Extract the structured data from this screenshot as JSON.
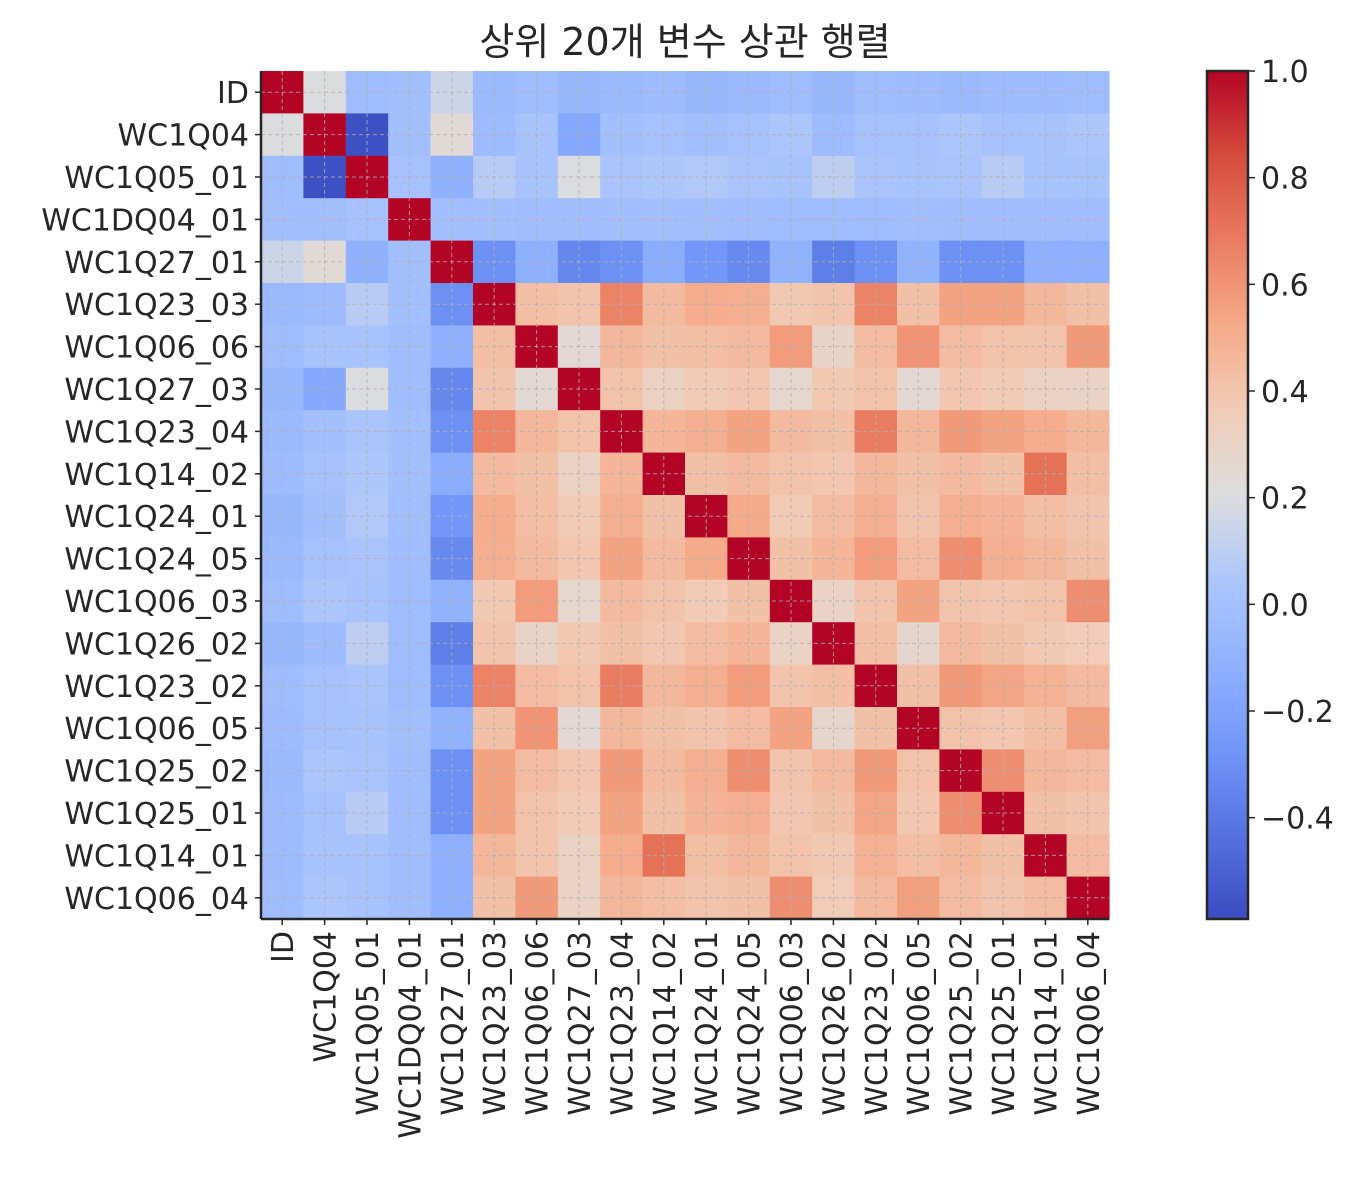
{
  "chart_data": {
    "type": "heatmap",
    "title": "상위 20개 변수 상관 행렬",
    "labels": [
      "ID",
      "WC1Q04",
      "WC1Q05_01",
      "WC1DQ04_01",
      "WC1Q27_01",
      "WC1Q23_03",
      "WC1Q06_06",
      "WC1Q27_03",
      "WC1Q23_04",
      "WC1Q14_02",
      "WC1Q24_01",
      "WC1Q24_05",
      "WC1Q06_03",
      "WC1Q26_02",
      "WC1Q23_02",
      "WC1Q06_05",
      "WC1Q25_02",
      "WC1Q25_01",
      "WC1Q14_01",
      "WC1Q06_04"
    ],
    "matrix": [
      [
        1.0,
        0.2,
        -0.03,
        -0.01,
        0.15,
        -0.05,
        -0.03,
        -0.07,
        -0.05,
        -0.04,
        -0.07,
        -0.05,
        -0.03,
        -0.07,
        -0.03,
        -0.04,
        -0.05,
        -0.04,
        -0.04,
        -0.03
      ],
      [
        0.2,
        1.0,
        -0.57,
        -0.01,
        0.24,
        -0.04,
        0.02,
        -0.17,
        0.0,
        0.01,
        -0.01,
        0.01,
        0.04,
        -0.04,
        0.01,
        0.01,
        0.04,
        0.01,
        0.02,
        0.04
      ],
      [
        -0.03,
        -0.57,
        1.0,
        0.01,
        -0.11,
        0.08,
        0.02,
        0.2,
        0.03,
        0.05,
        0.06,
        0.03,
        0.02,
        0.1,
        0.03,
        0.02,
        0.03,
        0.08,
        0.02,
        0.02
      ],
      [
        -0.01,
        -0.01,
        0.01,
        1.0,
        -0.01,
        0.0,
        -0.02,
        -0.02,
        0.0,
        0.0,
        -0.01,
        -0.02,
        -0.03,
        -0.03,
        -0.03,
        -0.01,
        -0.02,
        -0.02,
        -0.02,
        -0.02
      ],
      [
        0.15,
        0.24,
        -0.11,
        -0.01,
        1.0,
        -0.3,
        -0.12,
        -0.34,
        -0.3,
        -0.14,
        -0.27,
        -0.33,
        -0.1,
        -0.38,
        -0.3,
        -0.1,
        -0.3,
        -0.3,
        -0.12,
        -0.12
      ],
      [
        -0.05,
        -0.04,
        0.08,
        0.0,
        -0.3,
        1.0,
        0.43,
        0.4,
        0.66,
        0.45,
        0.51,
        0.5,
        0.38,
        0.4,
        0.66,
        0.42,
        0.55,
        0.55,
        0.46,
        0.42
      ],
      [
        -0.03,
        0.02,
        0.02,
        -0.02,
        -0.12,
        0.43,
        1.0,
        0.25,
        0.46,
        0.42,
        0.43,
        0.45,
        0.57,
        0.3,
        0.44,
        0.6,
        0.44,
        0.41,
        0.4,
        0.58
      ],
      [
        -0.07,
        -0.17,
        0.2,
        -0.02,
        -0.34,
        0.4,
        0.25,
        1.0,
        0.41,
        0.32,
        0.37,
        0.39,
        0.27,
        0.38,
        0.41,
        0.25,
        0.39,
        0.37,
        0.32,
        0.31
      ],
      [
        -0.05,
        0.0,
        0.03,
        0.0,
        -0.3,
        0.66,
        0.46,
        0.41,
        1.0,
        0.47,
        0.5,
        0.55,
        0.45,
        0.42,
        0.68,
        0.46,
        0.58,
        0.55,
        0.51,
        0.46
      ],
      [
        -0.04,
        0.01,
        0.05,
        0.0,
        -0.14,
        0.45,
        0.42,
        0.32,
        0.47,
        1.0,
        0.42,
        0.45,
        0.41,
        0.39,
        0.46,
        0.42,
        0.45,
        0.42,
        0.72,
        0.43
      ],
      [
        -0.07,
        -0.01,
        0.06,
        -0.01,
        -0.27,
        0.51,
        0.43,
        0.37,
        0.5,
        0.42,
        1.0,
        0.52,
        0.37,
        0.44,
        0.5,
        0.4,
        0.5,
        0.48,
        0.43,
        0.4
      ],
      [
        -0.05,
        0.01,
        0.03,
        -0.02,
        -0.33,
        0.5,
        0.45,
        0.39,
        0.55,
        0.45,
        0.52,
        1.0,
        0.42,
        0.47,
        0.57,
        0.44,
        0.62,
        0.5,
        0.46,
        0.42
      ],
      [
        -0.03,
        0.04,
        0.02,
        -0.03,
        -0.1,
        0.38,
        0.57,
        0.27,
        0.45,
        0.41,
        0.37,
        0.42,
        1.0,
        0.31,
        0.4,
        0.55,
        0.4,
        0.39,
        0.41,
        0.62
      ],
      [
        -0.07,
        -0.04,
        0.1,
        -0.03,
        -0.38,
        0.4,
        0.3,
        0.38,
        0.42,
        0.39,
        0.44,
        0.47,
        0.31,
        1.0,
        0.43,
        0.28,
        0.45,
        0.42,
        0.38,
        0.36
      ],
      [
        -0.03,
        0.01,
        0.03,
        -0.03,
        -0.3,
        0.66,
        0.44,
        0.41,
        0.68,
        0.46,
        0.5,
        0.57,
        0.4,
        0.43,
        1.0,
        0.42,
        0.58,
        0.54,
        0.49,
        0.45
      ],
      [
        -0.04,
        0.01,
        0.02,
        -0.01,
        -0.1,
        0.42,
        0.6,
        0.25,
        0.46,
        0.42,
        0.4,
        0.44,
        0.55,
        0.28,
        0.42,
        1.0,
        0.41,
        0.39,
        0.43,
        0.56
      ],
      [
        -0.05,
        0.04,
        0.03,
        -0.02,
        -0.3,
        0.55,
        0.44,
        0.39,
        0.58,
        0.45,
        0.5,
        0.62,
        0.4,
        0.45,
        0.58,
        0.41,
        1.0,
        0.62,
        0.46,
        0.44
      ],
      [
        -0.04,
        0.01,
        0.08,
        -0.02,
        -0.3,
        0.55,
        0.41,
        0.37,
        0.55,
        0.42,
        0.48,
        0.5,
        0.39,
        0.42,
        0.54,
        0.39,
        0.62,
        1.0,
        0.42,
        0.4
      ],
      [
        -0.04,
        0.02,
        0.02,
        -0.02,
        -0.12,
        0.46,
        0.4,
        0.32,
        0.51,
        0.72,
        0.43,
        0.46,
        0.41,
        0.38,
        0.49,
        0.43,
        0.46,
        0.42,
        1.0,
        0.44
      ],
      [
        -0.03,
        0.04,
        0.02,
        -0.02,
        -0.12,
        0.42,
        0.58,
        0.31,
        0.46,
        0.43,
        0.4,
        0.42,
        0.62,
        0.36,
        0.45,
        0.56,
        0.44,
        0.4,
        0.44,
        1.0
      ]
    ],
    "vmin": -0.59,
    "vmax": 1.0,
    "colormap": "coolwarm",
    "colorbar_ticks": [
      "1.0",
      "0.8",
      "0.6",
      "0.4",
      "0.2",
      "0.0",
      "−0.2",
      "−0.4"
    ],
    "colorbar_tick_values": [
      1.0,
      0.8,
      0.6,
      0.4,
      0.2,
      0.0,
      -0.2,
      -0.4
    ],
    "grid": true,
    "legend": "colorbar-right"
  }
}
